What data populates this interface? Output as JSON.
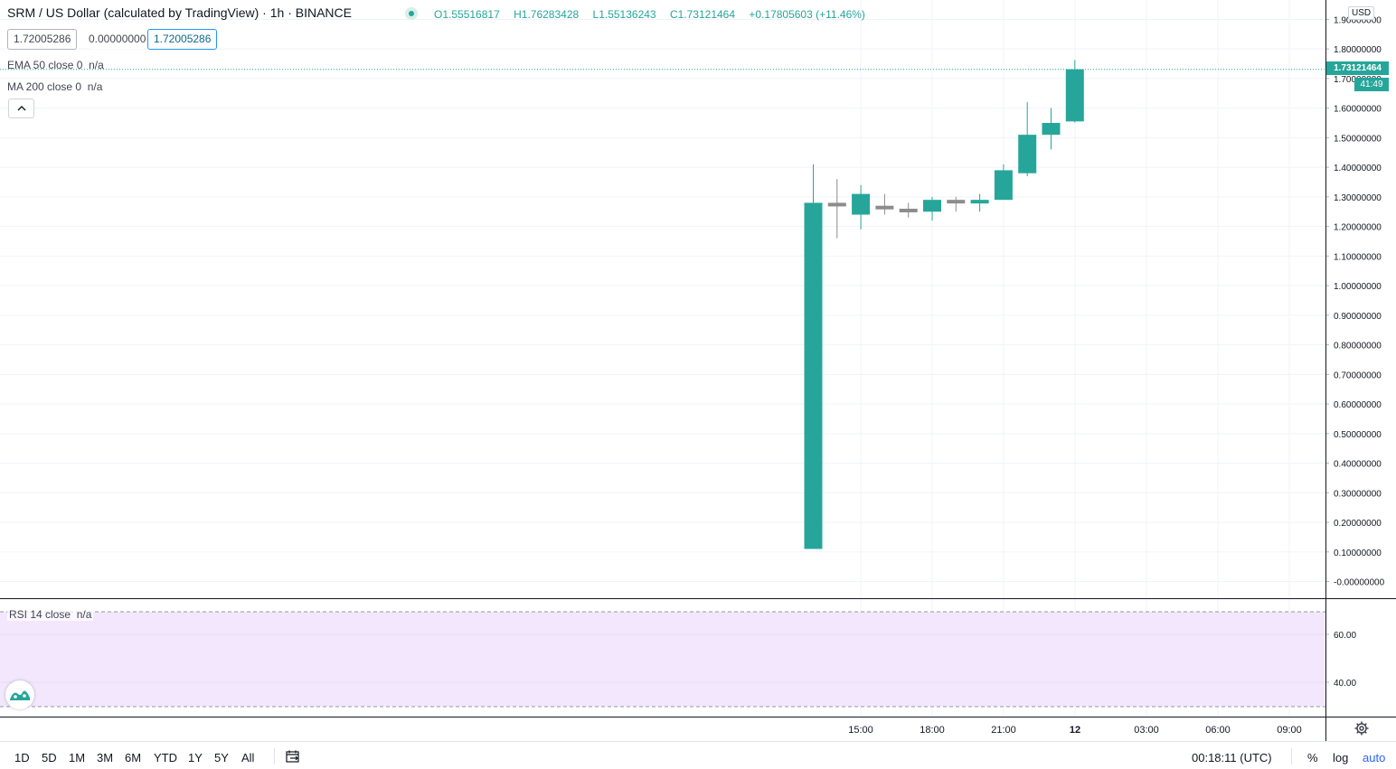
{
  "header": {
    "title": "SRM / US Dollar (calculated by TradingView) · 1h · BINANCE",
    "ohlc": {
      "open_label": "O",
      "open": "1.55516817",
      "high_label": "H",
      "high": "1.76283428",
      "low_label": "L",
      "low": "1.55136243",
      "close_label": "C",
      "close": "1.73121464",
      "change": "+0.17805603 (+11.46%)"
    },
    "pills": {
      "bid": "1.72005286",
      "spread": "0.00000000",
      "ask": "1.72005286"
    }
  },
  "studies": {
    "ema": {
      "label": "EMA 50 close 0",
      "value": "n/a"
    },
    "ma": {
      "label": "MA 200 close 0",
      "value": "n/a"
    },
    "collapse_icon": "chevron-up",
    "rsi": {
      "label": "RSI 14 close",
      "value": "n/a"
    }
  },
  "price_scale": {
    "currency": "USD",
    "current_price": "1.73121464",
    "countdown": "41:49"
  },
  "bottom_bar": {
    "ranges": [
      "1D",
      "5D",
      "1M",
      "3M",
      "6M",
      "YTD",
      "1Y",
      "5Y",
      "All"
    ],
    "clock": "00:18:11 (UTC)",
    "percent": "%",
    "log": "log",
    "auto": "auto"
  },
  "colors": {
    "up": "#26a69a",
    "neutral": "#8c8c8c",
    "rsi_band": "#f3e7fd",
    "grid": "#f0f3fa"
  },
  "chart_data": [
    {
      "type": "candlestick",
      "title": "SRM / US Dollar (calculated by TradingView)",
      "interval": "1h",
      "exchange": "BINANCE",
      "x": [
        "11 13:00",
        "11 14:00",
        "11 15:00",
        "11 16:00",
        "11 17:00",
        "11 18:00",
        "11 19:00",
        "11 20:00",
        "11 21:00",
        "11 22:00",
        "11 23:00",
        "12 00:00"
      ],
      "open": [
        0.11,
        1.27,
        1.24,
        1.27,
        1.25,
        1.25,
        1.28,
        1.28,
        1.29,
        1.38,
        1.51,
        1.55516817
      ],
      "high": [
        1.41,
        1.36,
        1.34,
        1.31,
        1.28,
        1.3,
        1.3,
        1.31,
        1.41,
        1.62,
        1.6,
        1.76283428
      ],
      "low": [
        0.11,
        1.16,
        1.19,
        1.24,
        1.23,
        1.22,
        1.25,
        1.25,
        1.29,
        1.37,
        1.46,
        1.55136243
      ],
      "close": [
        1.28,
        1.28,
        1.31,
        1.27,
        1.26,
        1.29,
        1.29,
        1.29,
        1.39,
        1.51,
        1.55,
        1.73121464
      ],
      "neutral_candles": [
        1,
        3,
        4,
        6
      ],
      "x_ticks": [
        "15:00",
        "18:00",
        "21:00",
        "12",
        "03:00",
        "06:00",
        "09:00"
      ],
      "y_ticks": [
        "1.90000000",
        "1.80000000",
        "1.70000000",
        "1.60000000",
        "1.50000000",
        "1.40000000",
        "1.30000000",
        "1.20000000",
        "1.10000000",
        "1.00000000",
        "0.90000000",
        "0.80000000",
        "0.70000000",
        "0.60000000",
        "0.50000000",
        "0.40000000",
        "0.30000000",
        "0.20000000",
        "0.10000000",
        "-0.00000000"
      ],
      "ylim": [
        -0.0,
        1.9
      ],
      "current_price_line": 1.73121464,
      "grid": true
    },
    {
      "type": "line",
      "title": "RSI 14 close",
      "y_ticks": [
        "60.00",
        "40.00"
      ],
      "band": [
        30,
        70
      ],
      "values": []
    }
  ]
}
